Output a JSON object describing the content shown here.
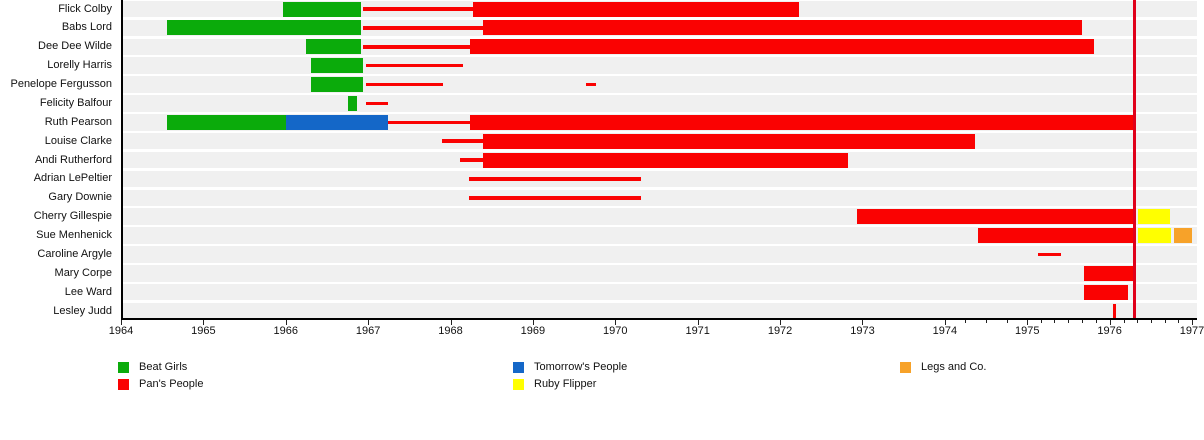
{
  "chart_data": {
    "type": "timeline-gantt",
    "description": "Membership timeline of dance troupe members (Beat Girls, Pan's People, Tomorrow's People, Ruby Flipper, Legs and Co.)",
    "x_axis": {
      "start": 1964,
      "end": 1977,
      "major_ticks": [
        1964,
        1965,
        1966,
        1967,
        1968,
        1969,
        1970,
        1971,
        1972,
        1973,
        1974,
        1975,
        1976,
        1977
      ],
      "tick_labels": [
        "1964",
        "1965",
        "1966",
        "1967",
        "1968",
        "1969",
        "1970",
        "1971",
        "1972",
        "1973",
        "1974",
        "1975",
        "1976",
        "1977"
      ],
      "minor_ticks": [
        1974.25,
        1974.5,
        1974.75,
        1975.17,
        1975.33,
        1975.5,
        1975.67,
        1975.83,
        1976.17,
        1976.33,
        1976.5,
        1976.67,
        1976.83
      ]
    },
    "colors": {
      "beat_girls": "#0BAB0B",
      "pans_people": "#FA0202",
      "tomorrows_people": "#1467C8",
      "ruby_flipper": "#FFFF00",
      "legs_and_co": "#F7A229",
      "marker_line": "#E0001A",
      "band": "#F0F0F0",
      "axis": "#000000"
    },
    "legend": [
      {
        "label": "Beat Girls",
        "troupe": "beat_girls"
      },
      {
        "label": "Pan's People",
        "troupe": "pans_people"
      },
      {
        "label": "Tomorrow's People",
        "troupe": "tomorrows_people"
      },
      {
        "label": "Ruby Flipper",
        "troupe": "ruby_flipper"
      },
      {
        "label": "Legs and Co.",
        "troupe": "legs_and_co"
      }
    ],
    "marker_line_year": 1976.3,
    "members": [
      {
        "name": "Flick Colby",
        "segments": [
          {
            "troupe": "beat_girls",
            "start": 1965.97,
            "end": 1966.91,
            "style": "full"
          },
          {
            "troupe": "pans_people",
            "start": 1966.94,
            "end": 1968.27,
            "style": "thin"
          },
          {
            "troupe": "pans_people",
            "start": 1968.27,
            "end": 1972.23,
            "style": "full"
          }
        ]
      },
      {
        "name": "Babs Lord",
        "segments": [
          {
            "troupe": "beat_girls",
            "start": 1964.56,
            "end": 1966.91,
            "style": "full"
          },
          {
            "troupe": "pans_people",
            "start": 1966.94,
            "end": 1968.39,
            "style": "thin"
          },
          {
            "troupe": "pans_people",
            "start": 1968.39,
            "end": 1975.67,
            "style": "full"
          }
        ]
      },
      {
        "name": "Dee Dee Wilde",
        "segments": [
          {
            "troupe": "beat_girls",
            "start": 1966.25,
            "end": 1966.91,
            "style": "full"
          },
          {
            "troupe": "pans_people",
            "start": 1966.94,
            "end": 1968.24,
            "style": "thin"
          },
          {
            "troupe": "pans_people",
            "start": 1968.24,
            "end": 1975.81,
            "style": "full"
          }
        ]
      },
      {
        "name": "Lorelly Harris",
        "segments": [
          {
            "troupe": "beat_girls",
            "start": 1966.31,
            "end": 1966.94,
            "style": "full"
          },
          {
            "troupe": "pans_people",
            "start": 1966.97,
            "end": 1968.15,
            "style": "thin"
          }
        ]
      },
      {
        "name": "Penelope Fergusson",
        "segments": [
          {
            "troupe": "beat_girls",
            "start": 1966.31,
            "end": 1966.94,
            "style": "full"
          },
          {
            "troupe": "pans_people",
            "start": 1966.97,
            "end": 1967.91,
            "style": "thin"
          },
          {
            "troupe": "pans_people",
            "start": 1969.64,
            "end": 1969.76,
            "style": "thin"
          }
        ]
      },
      {
        "name": "Felicity Balfour",
        "segments": [
          {
            "troupe": "beat_girls",
            "start": 1966.75,
            "end": 1966.87,
            "style": "full"
          },
          {
            "troupe": "pans_people",
            "start": 1966.97,
            "end": 1967.24,
            "style": "thin"
          }
        ]
      },
      {
        "name": "Ruth Pearson",
        "segments": [
          {
            "troupe": "beat_girls",
            "start": 1964.56,
            "end": 1966.0,
            "style": "full"
          },
          {
            "troupe": "tomorrows_people",
            "start": 1966.0,
            "end": 1967.24,
            "style": "full"
          },
          {
            "troupe": "pans_people",
            "start": 1967.24,
            "end": 1968.24,
            "style": "thin"
          },
          {
            "troupe": "pans_people",
            "start": 1968.24,
            "end": 1976.3,
            "style": "full"
          }
        ]
      },
      {
        "name": "Louise Clarke",
        "segments": [
          {
            "troupe": "pans_people",
            "start": 1967.9,
            "end": 1968.39,
            "style": "thin"
          },
          {
            "troupe": "pans_people",
            "start": 1968.39,
            "end": 1974.37,
            "style": "full"
          }
        ]
      },
      {
        "name": "Andi Rutherford",
        "segments": [
          {
            "troupe": "pans_people",
            "start": 1968.12,
            "end": 1968.39,
            "style": "thin"
          },
          {
            "troupe": "pans_people",
            "start": 1968.39,
            "end": 1972.82,
            "style": "full"
          }
        ]
      },
      {
        "name": "Adrian LePeltier",
        "segments": [
          {
            "troupe": "pans_people",
            "start": 1968.22,
            "end": 1970.31,
            "style": "thin"
          }
        ]
      },
      {
        "name": "Gary Downie",
        "segments": [
          {
            "troupe": "pans_people",
            "start": 1968.22,
            "end": 1970.31,
            "style": "thin"
          }
        ]
      },
      {
        "name": "Cherry Gillespie",
        "segments": [
          {
            "troupe": "pans_people",
            "start": 1972.93,
            "end": 1976.3,
            "style": "full"
          },
          {
            "troupe": "ruby_flipper",
            "start": 1976.34,
            "end": 1976.73,
            "style": "full"
          }
        ]
      },
      {
        "name": "Sue Menhenick",
        "segments": [
          {
            "troupe": "pans_people",
            "start": 1974.4,
            "end": 1976.3,
            "style": "full"
          },
          {
            "troupe": "ruby_flipper",
            "start": 1976.34,
            "end": 1976.74,
            "style": "full"
          },
          {
            "troupe": "legs_and_co",
            "start": 1976.78,
            "end": 1977.0,
            "style": "full"
          }
        ]
      },
      {
        "name": "Caroline Argyle",
        "segments": [
          {
            "troupe": "pans_people",
            "start": 1975.13,
            "end": 1975.41,
            "style": "thin"
          }
        ]
      },
      {
        "name": "Mary Corpe",
        "segments": [
          {
            "troupe": "pans_people",
            "start": 1975.69,
            "end": 1976.3,
            "style": "full"
          }
        ]
      },
      {
        "name": "Lee Ward",
        "segments": [
          {
            "troupe": "pans_people",
            "start": 1975.69,
            "end": 1976.22,
            "style": "full"
          }
        ]
      },
      {
        "name": "Lesley Judd",
        "segments": [
          {
            "troupe": "pans_people",
            "start": 1976.04,
            "end": 1976.08,
            "style": "full"
          }
        ]
      }
    ]
  }
}
